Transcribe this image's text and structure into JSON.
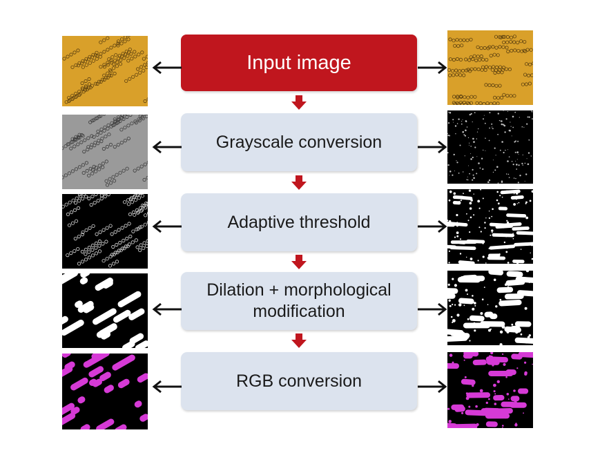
{
  "steps": [
    {
      "label": "Input image"
    },
    {
      "label": "Grayscale conversion"
    },
    {
      "label": "Adaptive threshold"
    },
    {
      "label": "Dilation + morphological\nmodification"
    },
    {
      "label": "RGB conversion"
    }
  ],
  "colors": {
    "input_box": "#c0161e",
    "step_box": "#dce3ee",
    "down_arrow": "#c0161e",
    "side_arrow": "#111111",
    "micro_bg": "#d9a02a",
    "magenta": "#d63ad6"
  },
  "thumbnails": {
    "left": [
      "microscopy-orange",
      "microscopy-gray",
      "threshold-bw",
      "dilated-bw",
      "rgb-magenta"
    ],
    "right": [
      "microscopy-orange",
      "gray-dark",
      "threshold-bw",
      "dilated-bw",
      "rgb-magenta"
    ]
  }
}
